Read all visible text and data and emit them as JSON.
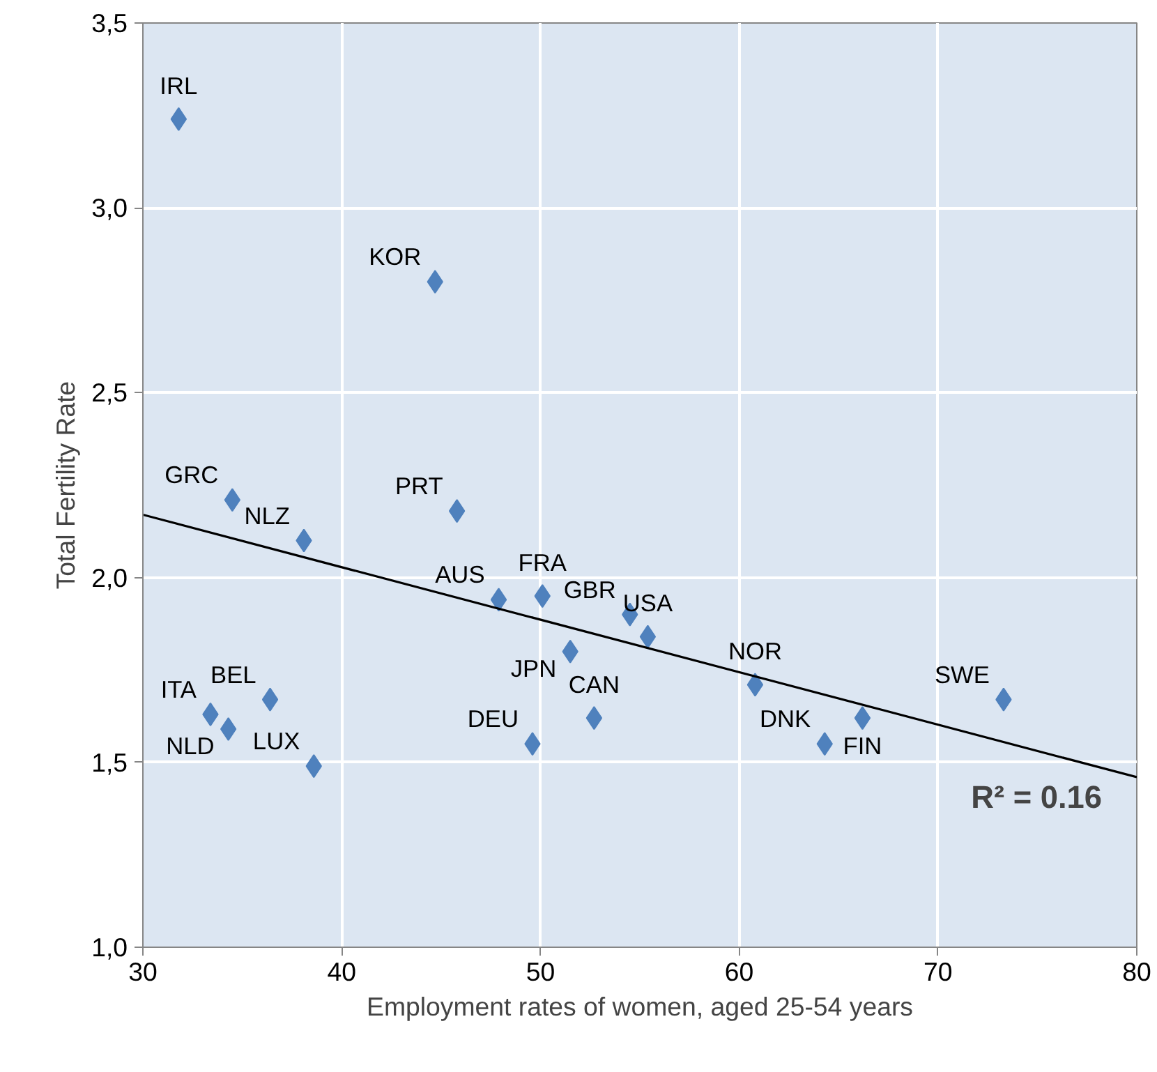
{
  "chart_data": {
    "type": "scatter",
    "xlabel": "Employment rates of women, aged 25-54 years",
    "ylabel": "Total Fertility Rate",
    "xlim": [
      30,
      80
    ],
    "xticks": [
      30,
      40,
      50,
      60,
      70,
      80
    ],
    "ylim": [
      1.0,
      3.5
    ],
    "yticks": [
      {
        "value": 1.0,
        "label": "1,0"
      },
      {
        "value": 1.5,
        "label": "1,5"
      },
      {
        "value": 2.0,
        "label": "2,0"
      },
      {
        "value": 2.5,
        "label": "2,5"
      },
      {
        "value": 3.0,
        "label": "3,0"
      },
      {
        "value": 3.5,
        "label": "3,5"
      }
    ],
    "grid": true,
    "series": [
      {
        "marker": "diamond",
        "color": "#4f81bd",
        "x": [
          31.8,
          44.7,
          34.5,
          45.8,
          38.1,
          47.9,
          50.1,
          54.5,
          55.4,
          51.5,
          52.7,
          49.6,
          36.4,
          33.4,
          34.3,
          38.6,
          60.8,
          64.3,
          66.2,
          73.3
        ],
        "values": [
          3.24,
          2.8,
          2.21,
          2.18,
          2.1,
          1.94,
          1.95,
          1.9,
          1.84,
          1.8,
          1.62,
          1.55,
          1.67,
          1.63,
          1.59,
          1.49,
          1.71,
          1.55,
          1.62,
          1.67
        ]
      },
      {
        "type": "line",
        "color": "#000000",
        "x": [
          30,
          80
        ],
        "values": [
          2.17,
          1.46
        ]
      }
    ],
    "annotations": [
      {
        "text": "IRL",
        "x": 31.8,
        "y": 3.24
      },
      {
        "text": "KOR",
        "x": 44.7,
        "y": 2.8
      },
      {
        "text": "GRC",
        "x": 34.5,
        "y": 2.21
      },
      {
        "text": "PRT",
        "x": 45.8,
        "y": 2.18
      },
      {
        "text": "NLZ",
        "x": 38.1,
        "y": 2.1
      },
      {
        "text": "AUS",
        "x": 47.9,
        "y": 1.94
      },
      {
        "text": "FRA",
        "x": 50.1,
        "y": 1.95
      },
      {
        "text": "GBR",
        "x": 54.5,
        "y": 1.9
      },
      {
        "text": "USA",
        "x": 55.4,
        "y": 1.84
      },
      {
        "text": "JPN",
        "x": 51.5,
        "y": 1.8
      },
      {
        "text": "CAN",
        "x": 52.7,
        "y": 1.62
      },
      {
        "text": "DEU",
        "x": 49.6,
        "y": 1.55
      },
      {
        "text": "BEL",
        "x": 36.4,
        "y": 1.67
      },
      {
        "text": "ITA",
        "x": 33.4,
        "y": 1.63
      },
      {
        "text": "NLD",
        "x": 34.3,
        "y": 1.59
      },
      {
        "text": "LUX",
        "x": 38.6,
        "y": 1.49
      },
      {
        "text": "NOR",
        "x": 60.8,
        "y": 1.71
      },
      {
        "text": "DNK",
        "x": 64.3,
        "y": 1.55
      },
      {
        "text": "FIN",
        "x": 66.2,
        "y": 1.62
      },
      {
        "text": "SWE",
        "x": 73.3,
        "y": 1.67
      },
      "R² = 0.16"
    ]
  }
}
